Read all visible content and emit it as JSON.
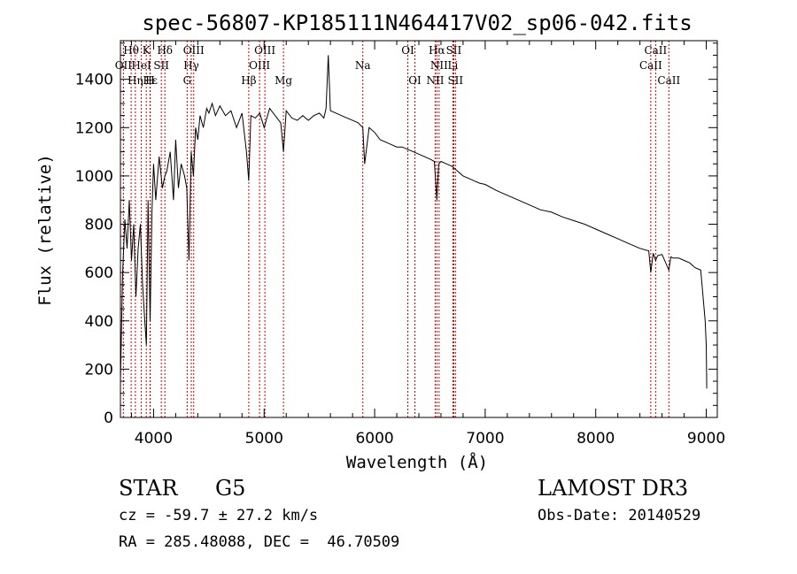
{
  "chart_data": {
    "type": "line",
    "title": "spec-56807-KP185111N464417V02_sp06-042.fits",
    "xlabel": "Wavelength (Å)",
    "ylabel": "Flux (relative)",
    "xlim": [
      3700,
      9100
    ],
    "ylim": [
      0,
      1560
    ],
    "xticks": [
      4000,
      5000,
      6000,
      7000,
      8000,
      9000
    ],
    "yticks": [
      0,
      200,
      400,
      600,
      800,
      1000,
      1200,
      1400
    ],
    "line_color": "#000000",
    "marker_color": "#cc0000",
    "spectrum": {
      "x": [
        3700,
        3720,
        3740,
        3760,
        3780,
        3800,
        3820,
        3840,
        3860,
        3880,
        3900,
        3920,
        3935,
        3950,
        3968,
        3985,
        4000,
        4020,
        4050,
        4080,
        4102,
        4120,
        4150,
        4180,
        4200,
        4225,
        4250,
        4280,
        4300,
        4320,
        4340,
        4360,
        4380,
        4400,
        4420,
        4450,
        4480,
        4500,
        4530,
        4560,
        4600,
        4650,
        4700,
        4750,
        4800,
        4840,
        4861,
        4880,
        4920,
        4960,
        5000,
        5050,
        5100,
        5150,
        5175,
        5200,
        5250,
        5300,
        5350,
        5400,
        5450,
        5500,
        5540,
        5560,
        5580,
        5600,
        5650,
        5700,
        5750,
        5800,
        5850,
        5893,
        5910,
        5950,
        6000,
        6050,
        6100,
        6150,
        6200,
        6250,
        6300,
        6350,
        6400,
        6450,
        6500,
        6540,
        6563,
        6580,
        6600,
        6650,
        6700,
        6750,
        6800,
        6850,
        6900,
        6950,
        7000,
        7100,
        7200,
        7300,
        7400,
        7500,
        7600,
        7700,
        7800,
        7900,
        8000,
        8100,
        8200,
        8300,
        8400,
        8480,
        8498,
        8520,
        8542,
        8560,
        8600,
        8662,
        8680,
        8700,
        8750,
        8800,
        8850,
        8900,
        8950,
        8990,
        9000,
        9005
      ],
      "y": [
        150,
        600,
        820,
        700,
        900,
        650,
        800,
        500,
        700,
        800,
        550,
        400,
        300,
        900,
        400,
        850,
        1050,
        900,
        1080,
        950,
        1000,
        1020,
        1100,
        900,
        1150,
        950,
        1050,
        1000,
        950,
        650,
        1100,
        1000,
        1200,
        1150,
        1250,
        1200,
        1280,
        1260,
        1300,
        1250,
        1290,
        1250,
        1270,
        1200,
        1260,
        1100,
        980,
        1250,
        1240,
        1260,
        1200,
        1280,
        1250,
        1220,
        1100,
        1270,
        1240,
        1230,
        1250,
        1230,
        1250,
        1260,
        1240,
        1280,
        1500,
        1270,
        1260,
        1250,
        1240,
        1230,
        1220,
        1200,
        1050,
        1200,
        1180,
        1150,
        1140,
        1130,
        1120,
        1120,
        1110,
        1100,
        1090,
        1080,
        1070,
        1060,
        900,
        1050,
        1060,
        1050,
        1040,
        1020,
        1000,
        990,
        980,
        970,
        965,
        940,
        920,
        900,
        880,
        860,
        850,
        830,
        815,
        800,
        780,
        760,
        740,
        720,
        700,
        690,
        600,
        680,
        650,
        670,
        675,
        610,
        665,
        660,
        660,
        650,
        640,
        620,
        610,
        400,
        300,
        120
      ]
    },
    "lines": [
      {
        "label": "Hθ",
        "wave": 3797,
        "row": 0
      },
      {
        "label": "K",
        "wave": 3934,
        "row": 0
      },
      {
        "label": "Hδ",
        "wave": 4102,
        "row": 0
      },
      {
        "label": "OIII",
        "wave": 4363,
        "row": 0
      },
      {
        "label": "OIII",
        "wave": 5007,
        "row": 0
      },
      {
        "label": "OI",
        "wave": 6300,
        "row": 0
      },
      {
        "label": "Hα",
        "wave": 6563,
        "row": 0
      },
      {
        "label": "SII",
        "wave": 6716,
        "row": 0
      },
      {
        "label": "CaII",
        "wave": 8542,
        "row": 0
      },
      {
        "label": "OII",
        "wave": 3727,
        "row": 1
      },
      {
        "label": "HeI",
        "wave": 3889,
        "row": 1
      },
      {
        "label": "SII",
        "wave": 4070,
        "row": 1
      },
      {
        "label": "Hγ",
        "wave": 4341,
        "row": 1
      },
      {
        "label": "OIII",
        "wave": 4959,
        "row": 1
      },
      {
        "label": "Na",
        "wave": 5893,
        "row": 1
      },
      {
        "label": "NII",
        "wave": 6583,
        "row": 1
      },
      {
        "label": "Li",
        "wave": 6708,
        "row": 1
      },
      {
        "label": "CaII",
        "wave": 8498,
        "row": 1
      },
      {
        "label": "Hε",
        "wave": 3970,
        "row": 2
      },
      {
        "label": "Hη",
        "wave": 3835,
        "row": 2
      },
      {
        "label": "H",
        "wave": 3968,
        "row": 2
      },
      {
        "label": "G",
        "wave": 4304,
        "row": 2
      },
      {
        "label": "Hβ",
        "wave": 4861,
        "row": 2
      },
      {
        "label": "Mg",
        "wave": 5175,
        "row": 2
      },
      {
        "label": "OI",
        "wave": 6364,
        "row": 2
      },
      {
        "label": "NII",
        "wave": 6548,
        "row": 2
      },
      {
        "label": "SII",
        "wave": 6731,
        "row": 2
      },
      {
        "label": "CaII",
        "wave": 8662,
        "row": 2
      }
    ]
  },
  "footer": {
    "object_class": "STAR",
    "subclass": "G5",
    "survey": "LAMOST DR3",
    "redshift": "cz = -59.7 ± 27.2 km/s",
    "obs_date": "Obs-Date: 20140529",
    "coords": "RA = 285.48088, DEC =  46.70509"
  }
}
